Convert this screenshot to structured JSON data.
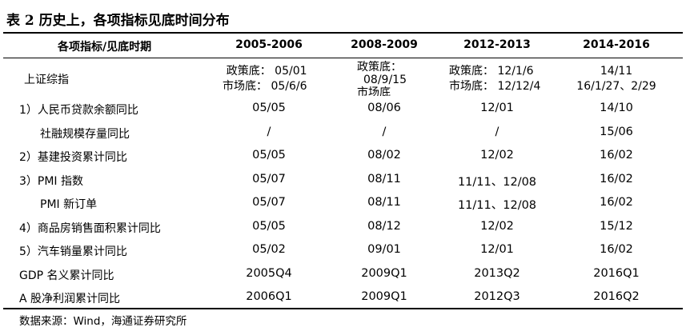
{
  "table": {
    "title": "表 2 历史上，各项指标见底时间分布",
    "header": {
      "label": "各项指标/见底时期",
      "periods": [
        "2005-2006",
        "2008-2009",
        "2012-2013",
        "2014-2016"
      ]
    },
    "shanghai": {
      "label": "上证综指",
      "p1": {
        "policy": "政策底： 05/01",
        "market": "市场底： 05/6/6"
      },
      "p2": {
        "policy": "政策底：",
        "value": "08/9/15",
        "market": "市场底"
      },
      "p3": {
        "policy": "政策底：  12/1/6",
        "market": "市场底：  12/12/4"
      },
      "p4": {
        "line1": "14/11",
        "line2": "16/1/27、2/29"
      }
    },
    "rows": [
      {
        "label": "1）人民币贷款余额同比",
        "values": [
          "05/05",
          "08/06",
          "12/01",
          "14/10"
        ]
      },
      {
        "label": "社融规模存量同比",
        "values": [
          "/",
          "/",
          "/",
          "15/06"
        ]
      },
      {
        "label": "2）基建投资累计同比",
        "values": [
          "05/05",
          "08/02",
          "12/02",
          "16/02"
        ]
      },
      {
        "label": "3）PMI 指数",
        "values": [
          "05/07",
          "08/11",
          "11/11、12/08",
          "16/02"
        ]
      },
      {
        "label": "PMI 新订单",
        "values": [
          "05/07",
          "08/11",
          "11/11、12/08",
          "16/02"
        ]
      },
      {
        "label": "4）商品房销售面积累计同比",
        "values": [
          "05/05",
          "08/12",
          "12/02",
          "15/12"
        ]
      },
      {
        "label": "5）汽车销量累计同比",
        "values": [
          "05/02",
          "09/01",
          "12/01",
          "16/02"
        ]
      },
      {
        "label": "GDP 名义累计同比",
        "values": [
          "2005Q4",
          "2009Q1",
          "2013Q2",
          "2016Q1"
        ]
      },
      {
        "label": "A 股净利润累计同比",
        "values": [
          "2006Q1",
          "2009Q1",
          "2012Q3",
          "2016Q2"
        ]
      }
    ],
    "source": "数据来源：Wind，海通证券研究所"
  }
}
